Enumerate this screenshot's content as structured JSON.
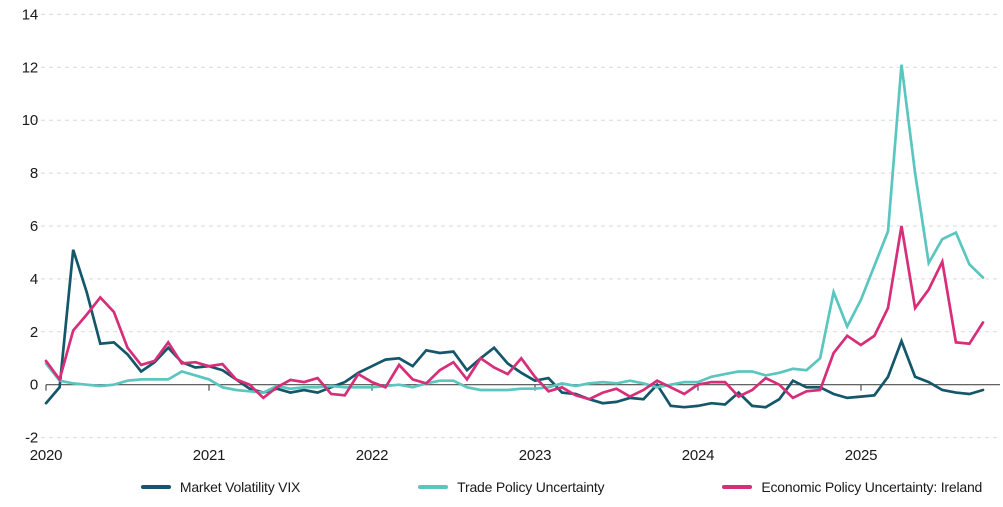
{
  "page": {
    "background": "#ffffff",
    "text_color": "#1a1a1a",
    "gridline_color": "#d9d9d9",
    "axis_color": "#4d4d4d"
  },
  "chart_data": {
    "type": "line",
    "title": "",
    "xlabel": "",
    "ylabel": "",
    "x_unit": "monthly",
    "x_start": "2020-01",
    "x_end": "2025-10",
    "x_tick_labels": [
      "2020",
      "2021",
      "2022",
      "2023",
      "2024",
      "2025"
    ],
    "ylim": [
      -2,
      14
    ],
    "yticks": [
      -2,
      0,
      2,
      4,
      6,
      8,
      10,
      12,
      14
    ],
    "grid": "horizontal dashed",
    "legend_position": "bottom",
    "series": [
      {
        "name": "Market Volatility VIX",
        "color": "#14576b",
        "values": [
          -0.7,
          -0.1,
          5.1,
          3.5,
          1.55,
          1.6,
          1.15,
          0.5,
          0.85,
          1.4,
          0.85,
          0.65,
          0.7,
          0.55,
          0.2,
          -0.15,
          -0.3,
          -0.15,
          -0.3,
          -0.2,
          -0.3,
          -0.1,
          0.1,
          0.45,
          0.7,
          0.95,
          1.0,
          0.7,
          1.3,
          1.2,
          1.25,
          0.55,
          1.0,
          1.4,
          0.8,
          0.45,
          0.15,
          0.25,
          -0.3,
          -0.35,
          -0.55,
          -0.7,
          -0.65,
          -0.5,
          -0.55,
          0.0,
          -0.8,
          -0.85,
          -0.8,
          -0.7,
          -0.75,
          -0.3,
          -0.8,
          -0.85,
          -0.55,
          0.15,
          -0.1,
          -0.1,
          -0.35,
          -0.5,
          -0.45,
          -0.4,
          0.3,
          1.65,
          0.3,
          0.1,
          -0.2,
          -0.3,
          -0.35,
          -0.2
        ]
      },
      {
        "name": "Trade Policy Uncertainty",
        "color": "#5bc6bf",
        "values": [
          0.8,
          0.15,
          0.05,
          0.0,
          -0.05,
          0.0,
          0.15,
          0.2,
          0.2,
          0.2,
          0.5,
          0.35,
          0.2,
          -0.1,
          -0.2,
          -0.25,
          -0.3,
          -0.05,
          -0.15,
          -0.1,
          -0.1,
          -0.05,
          -0.1,
          -0.1,
          -0.1,
          -0.05,
          0.0,
          -0.1,
          0.05,
          0.15,
          0.15,
          -0.1,
          -0.2,
          -0.2,
          -0.2,
          -0.15,
          -0.15,
          -0.1,
          0.05,
          -0.05,
          0.05,
          0.1,
          0.05,
          0.15,
          0.05,
          -0.1,
          0.0,
          0.1,
          0.1,
          0.3,
          0.4,
          0.5,
          0.5,
          0.35,
          0.45,
          0.6,
          0.55,
          1.0,
          3.5,
          2.2,
          3.2,
          4.5,
          5.8,
          12.1,
          8.0,
          4.6,
          5.5,
          5.75,
          4.55,
          4.05
        ]
      },
      {
        "name": "Economic Policy Uncertainty: Ireland",
        "color": "#d62e79",
        "values": [
          0.9,
          0.2,
          2.05,
          2.65,
          3.3,
          2.75,
          1.4,
          0.75,
          0.9,
          1.6,
          0.8,
          0.85,
          0.7,
          0.78,
          0.2,
          0.0,
          -0.5,
          -0.1,
          0.18,
          0.1,
          0.25,
          -0.35,
          -0.4,
          0.4,
          0.1,
          -0.1,
          0.75,
          0.2,
          0.05,
          0.55,
          0.85,
          0.2,
          1.0,
          0.65,
          0.4,
          1.0,
          0.3,
          -0.25,
          -0.1,
          -0.4,
          -0.55,
          -0.3,
          -0.15,
          -0.45,
          -0.2,
          0.15,
          -0.1,
          -0.35,
          0.0,
          0.1,
          0.1,
          -0.45,
          -0.2,
          0.25,
          0.0,
          -0.5,
          -0.25,
          -0.2,
          1.2,
          1.85,
          1.5,
          1.85,
          2.9,
          6.0,
          2.9,
          3.6,
          4.65,
          1.6,
          1.55,
          2.35
        ]
      }
    ]
  }
}
